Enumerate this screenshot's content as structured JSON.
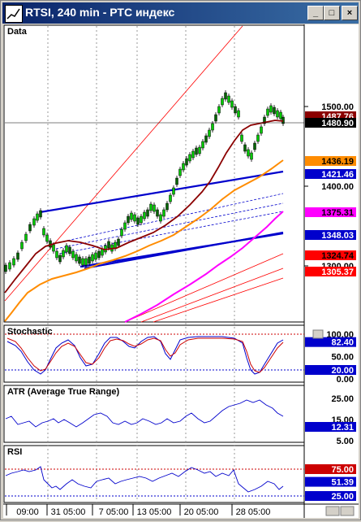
{
  "window": {
    "title": "RTSI, 240 min - РТС индекс",
    "minimize_label": "_",
    "maximize_label": "□",
    "close_label": "×"
  },
  "colors": {
    "background": "#ffffff",
    "price_bars": "#00aa00",
    "ma_dark": "#8b0000",
    "ma_orange": "#ff8c00",
    "ma_magenta": "#ff00ff",
    "channel": "#0000cc",
    "fan": "#ff0000",
    "stoch_k": "#0000cc",
    "stoch_d": "#cc0000"
  },
  "panes": {
    "data": {
      "label": "Data",
      "y_ticks": [
        "1500.00",
        "1400.00",
        "1300.00"
      ],
      "price_tags": [
        {
          "text": "1487.76",
          "bg": "#8b0000",
          "fg": "#ffffff",
          "value": 1487.76
        },
        {
          "text": "1480.90",
          "bg": "#000000",
          "fg": "#ffffff",
          "value": 1480.9
        },
        {
          "text": "1436.19",
          "bg": "#ff8c00",
          "fg": "#000000",
          "value": 1436.19
        },
        {
          "text": "1421.46",
          "bg": "#0000cc",
          "fg": "#ffffff",
          "value": 1421.46
        },
        {
          "text": "1375.31",
          "bg": "#ff00ff",
          "fg": "#000000",
          "value": 1375.31
        },
        {
          "text": "1348.03",
          "bg": "#0000cc",
          "fg": "#ffffff",
          "value": 1348.03
        },
        {
          "text": "1324.74",
          "bg": "#ff0000",
          "fg": "#000000",
          "value": 1324.74
        },
        {
          "text": "1305.37",
          "bg": "#ff0000",
          "fg": "#ffffff",
          "value": 1305.37
        }
      ]
    },
    "stochastic": {
      "label": "Stochastic",
      "y_ticks": [
        "100.00",
        "50.00",
        "0.00"
      ],
      "tags": [
        {
          "text": "82.40",
          "bg": "#0000cc",
          "fg": "#ffffff",
          "value": 82.4
        },
        {
          "text": "20.00",
          "bg": "#0000cc",
          "fg": "#ffffff",
          "value": 20
        }
      ]
    },
    "atr": {
      "label": "ATR (Average True Range)",
      "y_ticks": [
        "25.00",
        "15.00",
        "5.00"
      ],
      "tags": [
        {
          "text": "12.31",
          "bg": "#0000cc",
          "fg": "#ffffff",
          "value": 12.31
        }
      ]
    },
    "rsi": {
      "label": "RSI",
      "y_ticks": [],
      "tags": [
        {
          "text": "75.00",
          "bg": "#cc0000",
          "fg": "#ffffff",
          "value": 75
        },
        {
          "text": "51.39",
          "bg": "#0000cc",
          "fg": "#ffffff",
          "value": 51.39
        },
        {
          "text": "25.00",
          "bg": "#0000cc",
          "fg": "#ffffff",
          "value": 25
        }
      ]
    }
  },
  "x_axis": {
    "labels": [
      "09:00",
      "31 05:00",
      "7 05:00",
      "13 05:00",
      "20 05:00",
      "28 05:00"
    ]
  }
}
